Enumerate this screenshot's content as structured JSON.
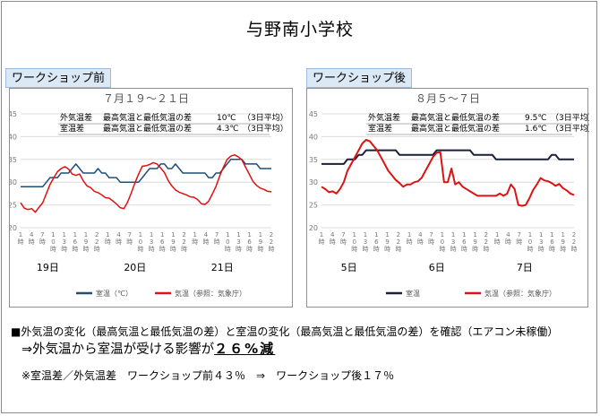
{
  "page_title": "与野南小学校",
  "left_tag": "ワークショップ前",
  "right_tag": "ワークショップ後",
  "summary": {
    "line1": "■外気温の変化（最高気温と最低気温の差）と室温の変化（最高気温と最低気温の差）を確認（エアコン未稼働）",
    "line2_prefix": "⇒外気温から室温が受ける影響が",
    "line2_value": "２６%減",
    "line3": "※室温差／外気温差　ワークショップ前４３％　⇒　ワークショップ後１７％"
  },
  "colors": {
    "room": "#1f4e79",
    "outside": "#dd1212",
    "room_right": "#1a1f3a"
  },
  "chart_data": [
    {
      "type": "line",
      "title": "７月１９～２１日",
      "stats": [
        {
          "label": "外気温差",
          "desc": "最高気温と最低気温の差",
          "value": "10℃",
          "avg": "（3日平均）"
        },
        {
          "label": "室温差",
          "desc": "最高気温と最低気温の差",
          "value": "4.3℃",
          "avg": "（3日平均）"
        }
      ],
      "ylim": [
        20,
        45
      ],
      "yticks": [
        "20",
        "25",
        "30",
        "35",
        "40",
        "45"
      ],
      "hour_ticks": [
        "1\n時",
        "4\n時",
        "7\n時",
        "1\n0\n時",
        "1\n3\n時",
        "1\n6\n時",
        "1\n9\n時",
        "2\n2\n時"
      ],
      "days": [
        "19日",
        "20日",
        "21日"
      ],
      "series": [
        {
          "name": "室温（℃）",
          "values": [
            29,
            29,
            29,
            29,
            29,
            29,
            29,
            30,
            31,
            31,
            31,
            32,
            32,
            32,
            33,
            34,
            33,
            32,
            32,
            32,
            32,
            33,
            32,
            32,
            31,
            31,
            31,
            30,
            30,
            30,
            30,
            30,
            30,
            31,
            32,
            33,
            33,
            33,
            34,
            34,
            33,
            33,
            34,
            33,
            32,
            32,
            32,
            32,
            32,
            32,
            32,
            31,
            31,
            32,
            32,
            33,
            34,
            35,
            35,
            35,
            35,
            34,
            34,
            34,
            34,
            33,
            33,
            33,
            33
          ]
        },
        {
          "name": "気温（参照：気象庁）",
          "values": [
            25.5,
            24.3,
            24,
            24.2,
            23.4,
            24.5,
            25.5,
            27.5,
            29.5,
            31,
            32.3,
            33,
            33.4,
            32.9,
            31.8,
            31.5,
            31.8,
            30.3,
            29.2,
            28.8,
            28,
            27.7,
            27.2,
            26.6,
            26.5,
            25.9,
            25.2,
            24.4,
            24.2,
            25.6,
            27.6,
            29.8,
            31.8,
            33.5,
            33.6,
            33.9,
            34.3,
            34,
            33.1,
            32.1,
            30.4,
            29.2,
            28.3,
            27.8,
            27.5,
            27.2,
            26.8,
            26.7,
            26.2,
            25.3,
            25.1,
            25.8,
            27.4,
            29.1,
            31.4,
            33.3,
            35,
            35.7,
            36,
            35.6,
            34.9,
            33.3,
            31.8,
            30.2,
            29.3,
            28.7,
            28.4,
            28,
            27.9
          ]
        }
      ],
      "legend": [
        "室温（℃）",
        "気温（参照：気象庁）"
      ]
    },
    {
      "type": "line",
      "title": "８月５～７日",
      "stats": [
        {
          "label": "外気温差",
          "desc": "最高気温と最低気温の差",
          "value": "9.5℃",
          "avg": "（3日平均）"
        },
        {
          "label": "室温差",
          "desc": "最高気温と最低気温の差",
          "value": "1.6℃",
          "avg": "（3日平均）"
        }
      ],
      "ylim": [
        20,
        45
      ],
      "yticks": [
        "20",
        "25",
        "30",
        "35",
        "40",
        "45"
      ],
      "hour_ticks": [
        "1\n時",
        "4\n時",
        "7\n時",
        "1\n0\n時",
        "1\n3\n時",
        "1\n6\n時",
        "1\n9\n時",
        "2\n2\n時"
      ],
      "days": [
        "5日",
        "6日",
        "7日"
      ],
      "series": [
        {
          "name": "室温",
          "values": [
            34,
            34,
            34,
            34,
            34,
            34,
            34,
            35,
            35,
            35,
            36,
            36,
            37,
            37,
            37,
            37,
            37,
            37,
            37,
            37,
            37,
            36,
            36,
            36,
            36,
            36,
            36,
            36,
            36,
            36,
            36,
            37,
            37,
            37,
            37,
            37,
            37,
            37,
            37,
            37,
            37,
            36,
            36,
            36,
            36,
            36,
            36,
            35,
            35,
            35,
            35,
            35,
            35,
            35,
            35,
            35,
            35,
            35,
            35,
            35,
            35,
            35,
            36,
            36,
            35,
            35,
            35,
            35,
            35
          ]
        },
        {
          "name": "気温（参照：気象庁）",
          "values": [
            29,
            28.5,
            27.8,
            28,
            27.5,
            28.5,
            30,
            32.5,
            34,
            35.5,
            37,
            38.5,
            39.3,
            39,
            38,
            37,
            35.5,
            34,
            32.5,
            31.5,
            30.5,
            29.8,
            29,
            29.5,
            29.5,
            30,
            30.2,
            31,
            32.5,
            34,
            35.5,
            36.5,
            36.6,
            30,
            30,
            33,
            29.5,
            30,
            29,
            28.5,
            28,
            27.5,
            27,
            27,
            27,
            27,
            27,
            27,
            27.5,
            27,
            27.5,
            29.5,
            28.5,
            25,
            24.8,
            25,
            26.5,
            28.3,
            29.5,
            30.9,
            30.4,
            30.2,
            29.8,
            29.2,
            29.6,
            28.7,
            28.2,
            27.5,
            27.2
          ]
        }
      ],
      "legend": [
        "室温",
        "気温（参照：気象庁）"
      ]
    }
  ]
}
